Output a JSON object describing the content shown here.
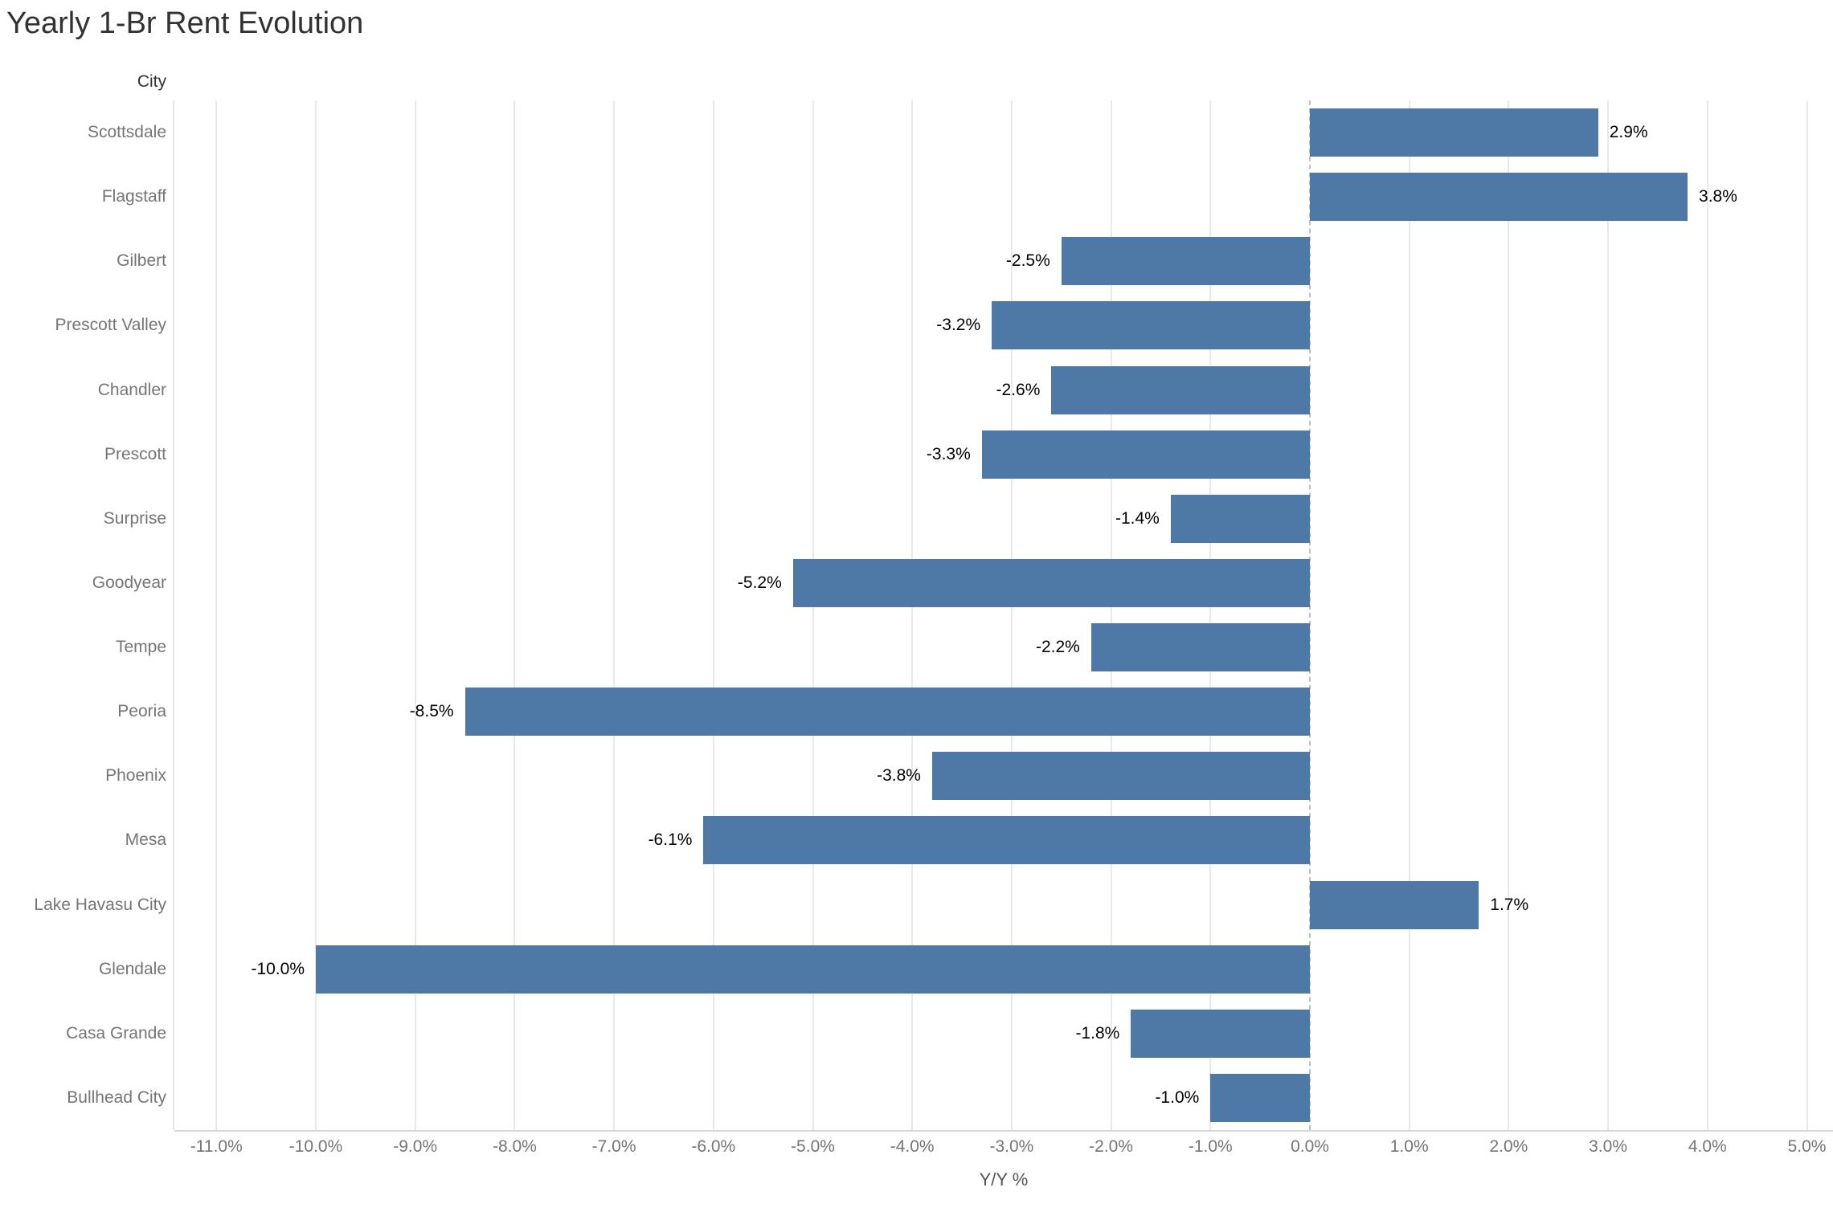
{
  "header": {
    "title": "Yearly 1-Br Rent Evolution"
  },
  "chart_data": {
    "type": "bar",
    "orientation": "horizontal",
    "title": "Yearly 1-Br Rent Evolution",
    "row_field_label": "City",
    "categories": [
      "Scottsdale",
      "Flagstaff",
      "Gilbert",
      "Prescott Valley",
      "Chandler",
      "Prescott",
      "Surprise",
      "Goodyear",
      "Tempe",
      "Peoria",
      "Phoenix",
      "Mesa",
      "Lake Havasu City",
      "Glendale",
      "Casa Grande",
      "Bullhead City"
    ],
    "values": [
      2.9,
      3.8,
      -2.5,
      -3.2,
      -2.6,
      -3.3,
      -1.4,
      -5.2,
      -2.2,
      -8.5,
      -3.8,
      -6.1,
      1.7,
      -10.0,
      -1.8,
      -1.0
    ],
    "value_labels": [
      "2.9%",
      "3.8%",
      "-2.5%",
      "-3.2%",
      "-2.6%",
      "-3.3%",
      "-1.4%",
      "-5.2%",
      "-2.2%",
      "-8.5%",
      "-3.8%",
      "-6.1%",
      "1.7%",
      "-10.0%",
      "-1.8%",
      "-1.0%"
    ],
    "xlabel": "Y/Y %",
    "xlim": [
      -11.45,
      5.26
    ],
    "x_tick_values": [
      -11,
      -10,
      -9,
      -8,
      -7,
      -6,
      -5,
      -4,
      -3,
      -2,
      -1,
      0,
      1,
      2,
      3,
      4,
      5
    ],
    "x_tick_labels": [
      "-11.0%",
      "-10.0%",
      "-9.0%",
      "-8.0%",
      "-7.0%",
      "-6.0%",
      "-5.0%",
      "-4.0%",
      "-3.0%",
      "-2.0%",
      "-1.0%",
      "0.0%",
      "1.0%",
      "2.0%",
      "3.0%",
      "4.0%",
      "5.0%"
    ],
    "grid": true,
    "zero_line_style": "dashed",
    "legend": "none"
  },
  "colors": {
    "bar": "#4e79a7",
    "title_text": "#323232",
    "header_text": "#333333",
    "category_text": "#757575",
    "tick_text": "#757575",
    "axis_title_text": "#555555",
    "value_label_text": "#000000",
    "gridline": "#e9e9e9",
    "zero_line": "#c0c0c0",
    "axis_line": "#d8d8d8",
    "background": "#ffffff"
  }
}
